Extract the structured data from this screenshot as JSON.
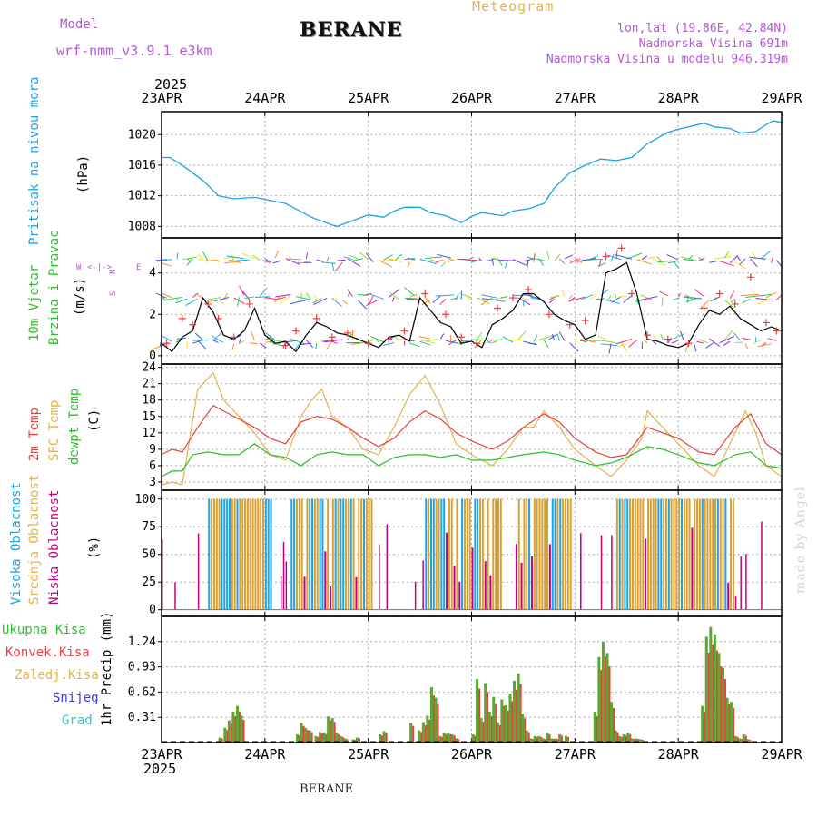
{
  "header": {
    "model_label": "Model",
    "model_name": "wrf-nmm_v3.9.1 e3km",
    "station": "BERANE",
    "meteogram": "Meteogram",
    "lonlat": "lon,lat (19.86E, 42.84N)",
    "altitude": "Nadmorska Visina 691m",
    "model_altitude": "Nadmorska Visina u modelu 946.319m",
    "year_top": "2025",
    "year_bottom": "2025",
    "footer_station": "BERANE",
    "credit": "made by Angel"
  },
  "colors": {
    "purple": "#b259d6",
    "orange": "#e3b34a",
    "blue": "#1aa3e6",
    "red": "#e8403e",
    "green": "#2bbf2b",
    "yellow": "#d9a030",
    "magenta": "#c20080",
    "snow": "#3a3adf",
    "hail": "#2ac8c0",
    "grid": "#aaaaaa"
  },
  "chart_data": [
    {
      "type": "line",
      "id": "pressure",
      "title": "Pritisak na nivou mora",
      "ylabel": "(hPa)",
      "x_labels": [
        "23APR",
        "24APR",
        "25APR",
        "26APR",
        "27APR",
        "28APR",
        "29APR"
      ],
      "x_range_days": [
        0,
        6
      ],
      "ylim": [
        1006.5,
        1023
      ],
      "yticks": [
        1008,
        1012,
        1016,
        1020
      ],
      "series": [
        {
          "name": "Pritisak",
          "color": "#1aa3e6",
          "x": [
            0,
            0.08,
            0.2,
            0.4,
            0.55,
            0.7,
            0.9,
            1.2,
            1.45,
            1.65,
            1.7,
            1.9,
            2.0,
            2.15,
            2.25,
            2.35,
            2.5,
            2.6,
            2.75,
            2.9,
            3.0,
            3.1,
            3.2,
            3.3,
            3.4,
            3.55,
            3.7,
            3.8,
            3.95,
            4.1,
            4.25,
            4.4,
            4.55,
            4.7,
            4.9,
            5.0,
            5.1,
            5.25,
            5.35,
            5.5,
            5.6,
            5.75,
            5.85,
            5.92,
            6.0
          ],
          "values": [
            1017,
            1017,
            1016,
            1014,
            1012,
            1011.6,
            1011.8,
            1011,
            1009.2,
            1008.2,
            1008,
            1009,
            1009.5,
            1009.2,
            1010,
            1010.5,
            1010.5,
            1009.8,
            1009.4,
            1008.5,
            1009.3,
            1009.8,
            1009.6,
            1009.4,
            1010,
            1010.3,
            1011,
            1013,
            1015,
            1016,
            1016.8,
            1016.6,
            1017,
            1018.8,
            1020.3,
            1020.7,
            1021,
            1021.5,
            1021,
            1020.8,
            1020.2,
            1020.4,
            1021.3,
            1021.8,
            1021.6
          ]
        }
      ]
    },
    {
      "type": "line",
      "id": "wind",
      "title": "10m Vjetar",
      "title2": "Brzina i Pravac",
      "ylabel": "(m/s)",
      "direction_legend": {
        "n": "N",
        "s": "S",
        "w": "W",
        "e": "E"
      },
      "ylim": [
        -0.4,
        5.7
      ],
      "yticks": [
        0,
        2,
        4
      ],
      "series": [
        {
          "name": "Brzina",
          "color": "#000000",
          "x": [
            0,
            0.1,
            0.2,
            0.3,
            0.4,
            0.5,
            0.6,
            0.7,
            0.8,
            0.9,
            1.0,
            1.1,
            1.2,
            1.3,
            1.4,
            1.5,
            1.6,
            1.7,
            1.8,
            1.9,
            2.0,
            2.1,
            2.2,
            2.3,
            2.4,
            2.5,
            2.6,
            2.7,
            2.8,
            2.9,
            3.0,
            3.1,
            3.2,
            3.3,
            3.4,
            3.5,
            3.6,
            3.7,
            3.8,
            3.9,
            4.0,
            4.1,
            4.2,
            4.3,
            4.4,
            4.5,
            4.6,
            4.7,
            4.8,
            4.9,
            5.0,
            5.1,
            5.2,
            5.3,
            5.4,
            5.5,
            5.6,
            5.7,
            5.8,
            5.9,
            6.0
          ],
          "values": [
            0.6,
            0.2,
            0.9,
            1.2,
            2.8,
            2.1,
            1.0,
            0.8,
            1.2,
            2.3,
            1.0,
            0.6,
            0.7,
            0.2,
            1.0,
            1.6,
            1.4,
            1.1,
            1.0,
            0.8,
            0.6,
            0.4,
            0.9,
            1.0,
            0.7,
            2.8,
            2.2,
            1.6,
            1.4,
            0.6,
            0.7,
            0.4,
            1.5,
            1.8,
            2.2,
            3.0,
            3.0,
            2.6,
            2.0,
            1.7,
            1.5,
            0.8,
            1.0,
            4.0,
            4.2,
            4.5,
            3.0,
            0.8,
            0.7,
            0.5,
            0.4,
            0.6,
            1.5,
            2.2,
            2.0,
            2.4,
            1.8,
            1.5,
            1.2,
            1.4,
            1.2
          ]
        },
        {
          "name": "Udari",
          "color": "#e8403e",
          "x": [
            0.05,
            0.2,
            0.3,
            0.45,
            0.55,
            0.7,
            0.85,
            1.05,
            1.2,
            1.3,
            1.5,
            1.65,
            1.8,
            2.0,
            2.2,
            2.35,
            2.55,
            2.75,
            2.9,
            3.05,
            3.25,
            3.4,
            3.55,
            3.75,
            3.95,
            4.1,
            4.3,
            4.45,
            4.55,
            4.7,
            4.9,
            5.1,
            5.25,
            5.4,
            5.55,
            5.7,
            5.85,
            5.95
          ],
          "values": [
            0.6,
            1.8,
            1.5,
            2.5,
            1.8,
            0.9,
            2.5,
            0.8,
            0.5,
            1.2,
            1.8,
            0.9,
            1.1,
            0.6,
            0.8,
            1.2,
            3.0,
            2.0,
            0.9,
            0.6,
            2.3,
            2.8,
            3.2,
            2.0,
            1.5,
            1.7,
            4.8,
            5.2,
            3.0,
            1.0,
            0.8,
            0.6,
            2.3,
            3.0,
            2.5,
            3.8,
            1.6,
            1.2
          ]
        }
      ]
    },
    {
      "type": "line",
      "id": "temperature",
      "labels": [
        "2m Temp",
        "SFC Temp",
        "dewpt Temp"
      ],
      "ylabel": "(C)",
      "ylim": [
        1.5,
        24.6
      ],
      "yticks": [
        3,
        6,
        9,
        12,
        15,
        18,
        21,
        24
      ],
      "series": [
        {
          "name": "2m Temp",
          "color": "#e8403e",
          "x": [
            0,
            0.1,
            0.2,
            0.35,
            0.5,
            0.7,
            0.9,
            1.05,
            1.2,
            1.35,
            1.5,
            1.65,
            1.8,
            1.95,
            2.1,
            2.25,
            2.4,
            2.55,
            2.7,
            2.85,
            3.0,
            3.2,
            3.35,
            3.5,
            3.7,
            3.85,
            4.0,
            4.2,
            4.35,
            4.5,
            4.7,
            4.85,
            5.0,
            5.2,
            5.35,
            5.55,
            5.7,
            5.85,
            6.0
          ],
          "values": [
            8,
            9,
            8.5,
            13,
            17,
            15,
            13,
            11,
            10,
            14,
            15,
            14.5,
            13,
            11,
            9.5,
            11,
            14,
            16,
            14.5,
            12,
            10.5,
            9,
            10.5,
            13,
            15.5,
            14,
            11,
            8.5,
            7.5,
            8,
            13,
            12,
            11,
            8.5,
            8,
            13,
            15.5,
            10,
            8
          ]
        },
        {
          "name": "SFC Temp",
          "color": "#e3b34a",
          "x": [
            0,
            0.1,
            0.2,
            0.35,
            0.5,
            0.6,
            0.7,
            0.9,
            1.05,
            1.2,
            1.35,
            1.45,
            1.55,
            1.65,
            1.8,
            1.95,
            2.1,
            2.25,
            2.4,
            2.55,
            2.7,
            2.85,
            3.0,
            3.2,
            3.35,
            3.5,
            3.6,
            3.7,
            3.85,
            4.0,
            4.2,
            4.35,
            4.5,
            4.65,
            4.7,
            4.85,
            5.0,
            5.2,
            5.35,
            5.55,
            5.65,
            5.75,
            5.85,
            6.0
          ],
          "values": [
            2.5,
            3,
            2.5,
            20,
            23,
            18,
            16,
            12,
            8,
            7,
            15,
            18,
            20,
            15,
            13,
            9,
            8,
            13,
            19,
            22.5,
            17,
            10,
            8,
            6,
            9,
            13,
            13,
            16,
            13,
            9,
            6,
            4,
            7,
            11,
            16,
            13,
            10,
            6,
            4,
            12,
            16,
            12,
            6,
            4
          ]
        },
        {
          "name": "dewpt Temp",
          "color": "#2bbf2b",
          "x": [
            0,
            0.1,
            0.2,
            0.3,
            0.45,
            0.6,
            0.75,
            0.9,
            1.05,
            1.2,
            1.35,
            1.5,
            1.65,
            1.8,
            1.95,
            2.1,
            2.25,
            2.4,
            2.55,
            2.7,
            2.85,
            3.0,
            3.2,
            3.35,
            3.5,
            3.7,
            3.85,
            4.0,
            4.2,
            4.35,
            4.5,
            4.7,
            4.85,
            5.0,
            5.2,
            5.35,
            5.55,
            5.7,
            5.85,
            6.0
          ],
          "values": [
            4,
            5,
            5,
            8,
            8.5,
            8,
            8,
            10,
            8,
            7.5,
            6,
            8,
            8.5,
            8,
            8,
            6,
            7.5,
            8,
            8,
            7.5,
            8,
            7,
            7,
            7.5,
            8,
            8.5,
            8,
            7,
            6,
            6.5,
            7.5,
            9.5,
            9,
            8,
            6.5,
            6,
            8,
            8.5,
            6,
            5.5
          ]
        }
      ]
    },
    {
      "type": "bar",
      "id": "clouds",
      "labels": [
        "Visoka Oblacnost",
        "Srednja Oblacnost",
        "Niska Oblacnost"
      ],
      "ylabel": "(%)",
      "ylim": [
        -6,
        108
      ],
      "yticks": [
        0,
        25,
        50,
        75,
        100
      ]
    },
    {
      "type": "bar",
      "id": "precipitation",
      "legend": [
        "Ukupna Kisa",
        "Konvek.Kisa",
        "Zaledj.Kisa",
        "Snijeg",
        "Grad"
      ],
      "ylabel": "1hr Precip (mm)",
      "ylim": [
        0,
        1.55
      ],
      "yticks": [
        "0.31",
        "0.62",
        "0.93",
        "1.24"
      ],
      "ytick_values": [
        0.31,
        0.62,
        0.93,
        1.24
      ],
      "x": [
        0.55,
        0.6,
        0.64,
        0.68,
        0.72,
        0.76,
        1.3,
        1.34,
        1.38,
        1.42,
        1.48,
        1.52,
        1.56,
        1.6,
        1.64,
        1.68,
        1.72,
        1.76,
        1.84,
        1.88,
        2.1,
        2.14,
        2.4,
        2.48,
        2.52,
        2.56,
        2.6,
        2.64,
        2.68,
        2.72,
        2.76,
        2.8,
        2.84,
        3.0,
        3.04,
        3.08,
        3.12,
        3.16,
        3.2,
        3.24,
        3.28,
        3.32,
        3.36,
        3.4,
        3.44,
        3.48,
        3.52,
        3.56,
        3.6,
        3.64,
        3.68,
        3.72,
        3.76,
        3.8,
        3.84,
        3.9,
        4.18,
        4.22,
        4.26,
        4.3,
        4.34,
        4.38,
        4.42,
        4.46,
        4.5,
        4.54,
        4.58,
        4.62,
        5.22,
        5.26,
        5.3,
        5.34,
        5.38,
        5.42,
        5.46,
        5.5,
        5.54,
        5.58,
        5.62,
        5.66
      ],
      "values": [
        0.06,
        0.18,
        0.27,
        0.38,
        0.45,
        0.33,
        0.1,
        0.24,
        0.18,
        0.15,
        0.08,
        0.13,
        0.12,
        0.32,
        0.3,
        0.12,
        0.08,
        0.05,
        0.04,
        0.06,
        0.1,
        0.14,
        0.24,
        0.15,
        0.25,
        0.33,
        0.68,
        0.55,
        0.08,
        0.12,
        0.12,
        0.1,
        0.05,
        0.1,
        0.78,
        0.3,
        0.73,
        0.38,
        0.56,
        0.25,
        0.53,
        0.46,
        0.6,
        0.76,
        0.85,
        0.35,
        0.15,
        0.05,
        0.08,
        0.08,
        0.05,
        0.12,
        0.05,
        0.05,
        0.1,
        0.08,
        0.38,
        1.05,
        1.24,
        1.1,
        0.5,
        0.15,
        0.08,
        0.1,
        0.12,
        0.05,
        0.05,
        0.04,
        0.45,
        1.3,
        1.42,
        1.33,
        1.1,
        0.92,
        0.55,
        0.5,
        0.08,
        0.05,
        0.1,
        0.04
      ]
    }
  ]
}
